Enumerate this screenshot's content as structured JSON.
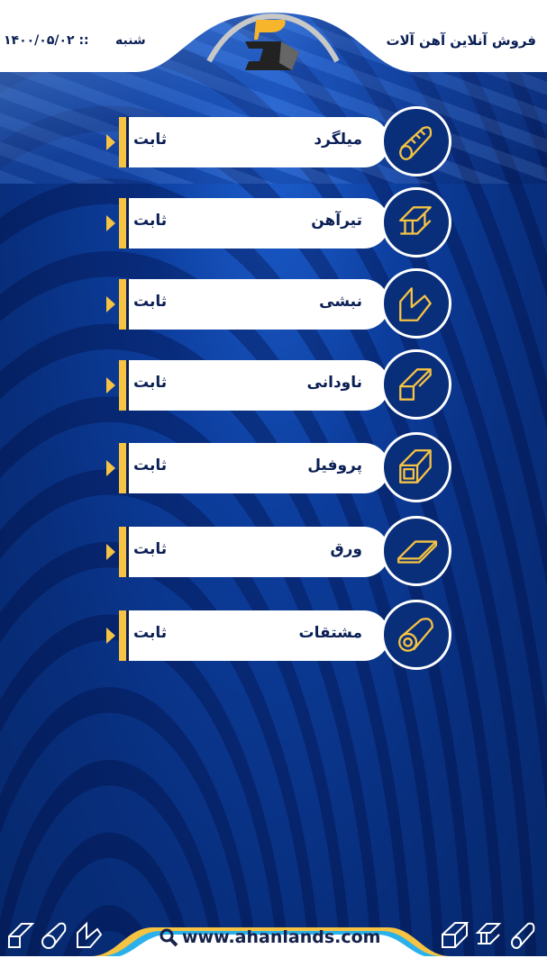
{
  "header": {
    "title": "فروش آنلاین آهن آلات",
    "day": "شنبه",
    "date": "۱۴۰۰/۰۵/۰۲ ::"
  },
  "items": [
    {
      "name": "میلگرد",
      "status": "ثابت",
      "icon": "rebar-icon"
    },
    {
      "name": "تیرآهن",
      "status": "ثابت",
      "icon": "i-beam-icon"
    },
    {
      "name": "نبشی",
      "status": "ثابت",
      "icon": "angle-icon"
    },
    {
      "name": "ناودانی",
      "status": "ثابت",
      "icon": "channel-icon"
    },
    {
      "name": "پروفیل",
      "status": "ثابت",
      "icon": "profile-icon"
    },
    {
      "name": "ورق",
      "status": "ثابت",
      "icon": "sheet-icon"
    },
    {
      "name": "مشتقات",
      "status": "ثابت",
      "icon": "pipe-icon"
    }
  ],
  "footer": {
    "url": "www.ahanlands.com"
  },
  "colors": {
    "accent": "#f6c343",
    "navy": "#0b1f55",
    "background": "#082e7c"
  }
}
